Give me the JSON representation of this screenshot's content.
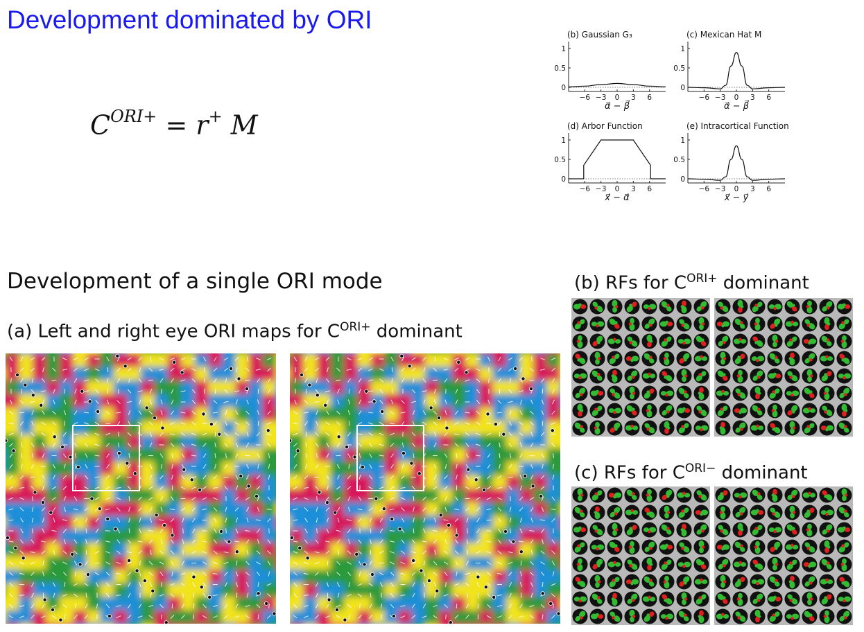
{
  "slide": {
    "title": "Development dominated by ORI",
    "equation": {
      "base": "C",
      "sup": "ORI+",
      "rhs": "= r",
      "rhs_sup": "+",
      "rhs_tail": " M"
    },
    "section_heading": "Development of a single ORI mode",
    "caption_a": {
      "pre": "(a) Left and right eye ORI maps for C",
      "sup": "ORI+",
      "post": " dominant"
    },
    "caption_b": {
      "pre": "(b) RFs for C",
      "sup": "ORI+",
      "post": " dominant"
    },
    "caption_c": {
      "pre": "(c) RFs for C",
      "sup": "ORI−",
      "post": " dominant"
    }
  },
  "colors": {
    "title": "#1a1aee",
    "ori_red": "#d8145a",
    "ori_yellow": "#f2e41a",
    "ori_green": "#2a9a3a",
    "ori_blue": "#1e8fd8",
    "rf_red": "#e02020",
    "rf_green": "#33bb33"
  },
  "chart_data": [
    {
      "type": "line",
      "title": "(b) Gaussian G₃",
      "xlabel": "α⃗ − β⃗",
      "x_ticks": [
        "−6",
        "−3",
        "0",
        "3",
        "6"
      ],
      "y_ticks": [
        "0",
        "0.5",
        "1"
      ],
      "xlim": [
        -9,
        9
      ],
      "ylim": [
        0,
        1
      ],
      "series": [
        {
          "x": [
            -9,
            -6,
            -3,
            0,
            3,
            6,
            9
          ],
          "y": [
            0.01,
            0.03,
            0.07,
            0.1,
            0.07,
            0.03,
            0.01
          ]
        }
      ]
    },
    {
      "type": "line",
      "title": "(c) Mexican Hat M",
      "xlabel": "α⃗ − β⃗",
      "x_ticks": [
        "−6",
        "−3",
        "0",
        "3",
        "6"
      ],
      "y_ticks": [
        "0",
        "0.5",
        "1"
      ],
      "xlim": [
        -9,
        9
      ],
      "ylim": [
        0,
        1
      ],
      "series": [
        {
          "x": [
            -9,
            -6,
            -3,
            -2,
            -1,
            0,
            1,
            2,
            3,
            6,
            9
          ],
          "y": [
            0,
            -0.01,
            -0.04,
            0.05,
            0.55,
            0.9,
            0.55,
            0.05,
            -0.04,
            -0.01,
            0
          ]
        }
      ]
    },
    {
      "type": "line",
      "title": "(d) Arbor Function",
      "xlabel": "x⃗ − α⃗",
      "x_ticks": [
        "−6",
        "−3",
        "0",
        "3",
        "6"
      ],
      "y_ticks": [
        "0",
        "0.5",
        "1"
      ],
      "xlim": [
        -9,
        9
      ],
      "ylim": [
        0,
        1
      ],
      "series": [
        {
          "x": [
            -9,
            -6.2,
            -6.2,
            -3,
            3,
            6.2,
            6.2,
            9
          ],
          "y": [
            0,
            0,
            0.35,
            1,
            1,
            0.35,
            0,
            0
          ]
        }
      ]
    },
    {
      "type": "line",
      "title": "(e) Intracortical Function",
      "xlabel": "x⃗ − y⃗",
      "x_ticks": [
        "−6",
        "−3",
        "0",
        "3",
        "6"
      ],
      "y_ticks": [
        "0",
        "0.5",
        "1"
      ],
      "xlim": [
        -9,
        9
      ],
      "ylim": [
        0,
        1
      ],
      "series": [
        {
          "x": [
            -9,
            -6,
            -3,
            -2,
            -1,
            0,
            1,
            2,
            3,
            6,
            9
          ],
          "y": [
            0,
            -0.01,
            -0.04,
            0.05,
            0.5,
            0.85,
            0.5,
            0.05,
            -0.04,
            -0.01,
            0
          ]
        }
      ]
    }
  ]
}
